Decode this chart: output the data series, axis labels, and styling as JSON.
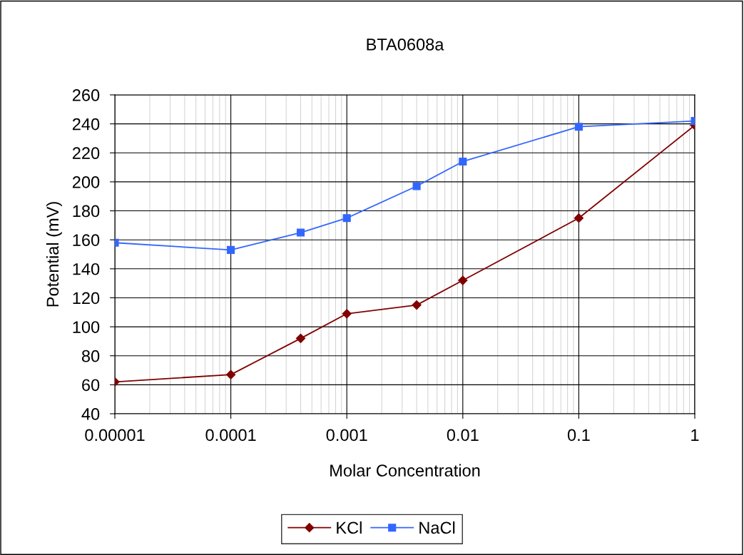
{
  "chart_data": {
    "type": "line",
    "title": "BTA0608a",
    "xlabel": "Molar Concentration",
    "ylabel": "Potential (mV)",
    "log": "x",
    "grid": true,
    "legend": "bottom",
    "xlim": [
      1e-05,
      1
    ],
    "xticks": [
      {
        "value": 1e-05,
        "label": "0.00001"
      },
      {
        "value": 0.0001,
        "label": "0.0001"
      },
      {
        "value": 0.001,
        "label": "0.001"
      },
      {
        "value": 0.01,
        "label": "0.01"
      },
      {
        "value": 0.1,
        "label": "0.1"
      },
      {
        "value": 1,
        "label": "1"
      }
    ],
    "ylim": [
      40,
      260
    ],
    "yticks": [
      40,
      60,
      80,
      100,
      120,
      140,
      160,
      180,
      200,
      220,
      240,
      260
    ],
    "x": [
      1e-05,
      0.0001,
      0.0004,
      0.001,
      0.004,
      0.01,
      0.1,
      1
    ],
    "series": [
      {
        "name": "KCl",
        "color": "#800000",
        "marker": "diamond",
        "values": [
          62,
          67,
          92,
          109,
          115,
          132,
          175,
          239
        ]
      },
      {
        "name": "NaCl",
        "color": "#3366ff",
        "marker": "square",
        "values": [
          158,
          153,
          165,
          175,
          197,
          214,
          238,
          242
        ]
      }
    ]
  }
}
